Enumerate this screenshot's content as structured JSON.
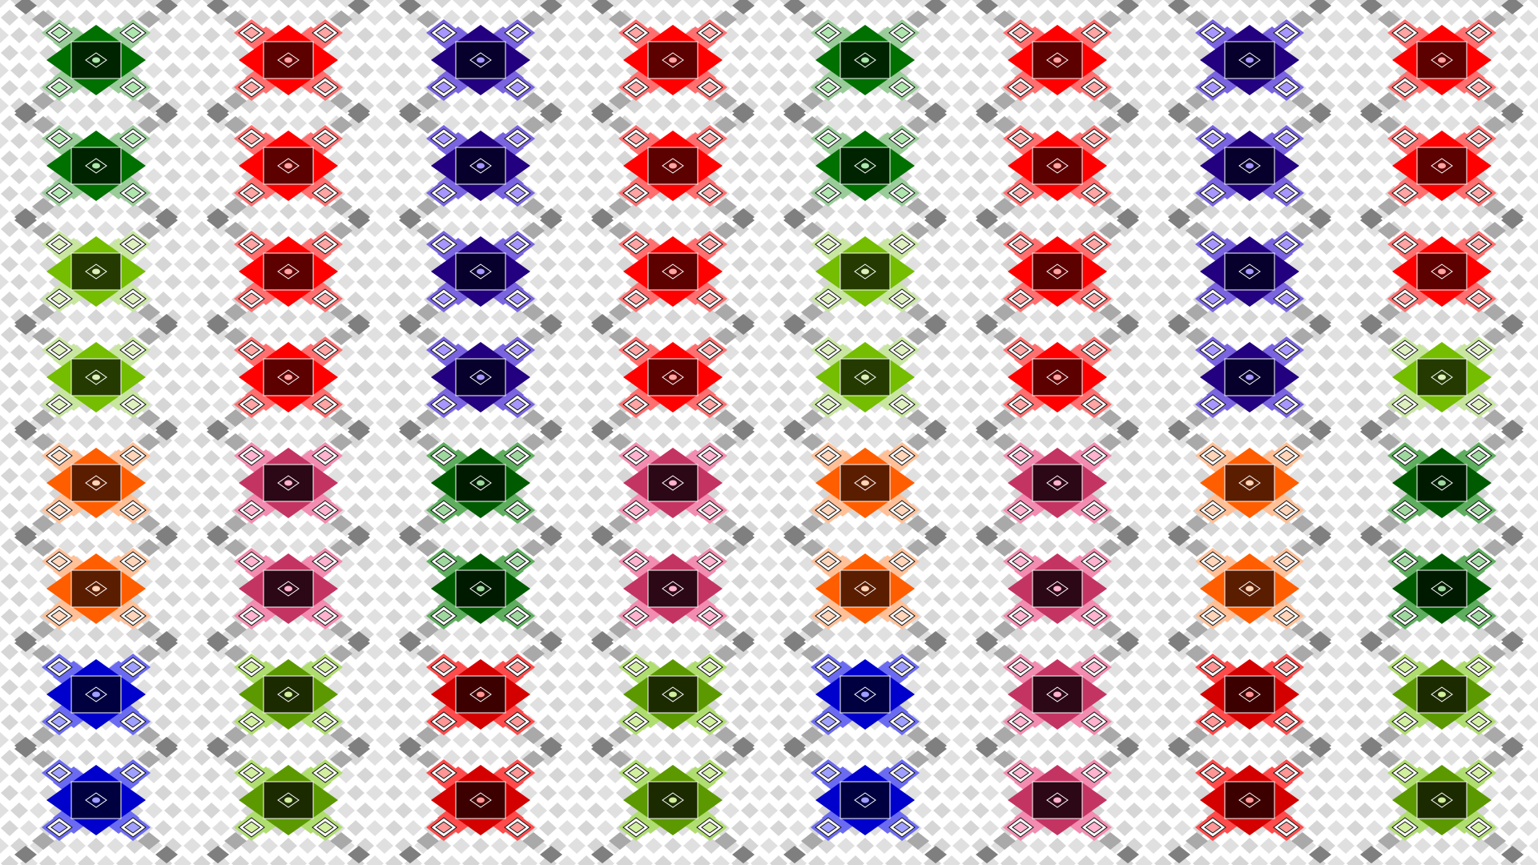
{
  "background": "#ffffff",
  "bg_tile_colors": [
    "#e0e0e0",
    "#d6d6d6"
  ],
  "shadow_colors": {
    "dark": "#7f7f7f",
    "mid": "#a9a9a9",
    "light": "#c7c7c7"
  },
  "palettes": {
    "green": {
      "main": "#007000",
      "light": "#99cc99",
      "dark": "#002400",
      "ring": "#aee6ae"
    },
    "lime": {
      "main": "#74bd00",
      "light": "#c8e6a0",
      "dark": "#243a00",
      "ring": "#dff0bf"
    },
    "olive": {
      "main": "#5c9900",
      "light": "#b0dd70",
      "dark": "#1c2a00",
      "ring": "#d2ef9f"
    },
    "red": {
      "main": "#ff0000",
      "light": "#ff6f6f",
      "dark": "#5c0000",
      "ring": "#ffa3a3"
    },
    "darkred": {
      "main": "#d40000",
      "light": "#ff4b4b",
      "dark": "#3d0000",
      "ring": "#ff9595"
    },
    "indigo": {
      "main": "#22007f",
      "light": "#7a64e0",
      "dark": "#07002c",
      "ring": "#a796ff"
    },
    "blue": {
      "main": "#0000cc",
      "light": "#6b6bf2",
      "dark": "#000040",
      "ring": "#9f9fff"
    },
    "orange": {
      "main": "#ff5e00",
      "light": "#ffc098",
      "dark": "#5a1d00",
      "ring": "#ffd4b8"
    },
    "pink": {
      "main": "#c43463",
      "light": "#f28cb0",
      "dark": "#2c0716",
      "ring": "#ffb2ce"
    },
    "forest": {
      "main": "#005b00",
      "light": "#5fae5f",
      "dark": "#001a00",
      "ring": "#9fd89f"
    }
  },
  "grid": [
    [
      "green",
      "red",
      "indigo",
      "red",
      "green",
      "red",
      "indigo",
      "red"
    ],
    [
      "green",
      "red",
      "indigo",
      "red",
      "green",
      "red",
      "indigo",
      "red"
    ],
    [
      "lime",
      "red",
      "indigo",
      "red",
      "lime",
      "red",
      "indigo",
      "red"
    ],
    [
      "lime",
      "red",
      "indigo",
      "red",
      "lime",
      "red",
      "indigo",
      "lime"
    ],
    [
      "orange",
      "pink",
      "forest",
      "pink",
      "orange",
      "pink",
      "orange",
      "forest"
    ],
    [
      "orange",
      "pink",
      "forest",
      "pink",
      "orange",
      "pink",
      "orange",
      "forest"
    ],
    [
      "blue",
      "olive",
      "darkred",
      "olive",
      "blue",
      "pink",
      "darkred",
      "olive"
    ],
    [
      "blue",
      "olive",
      "darkred",
      "olive",
      "blue",
      "pink",
      "darkred",
      "olive"
    ]
  ]
}
